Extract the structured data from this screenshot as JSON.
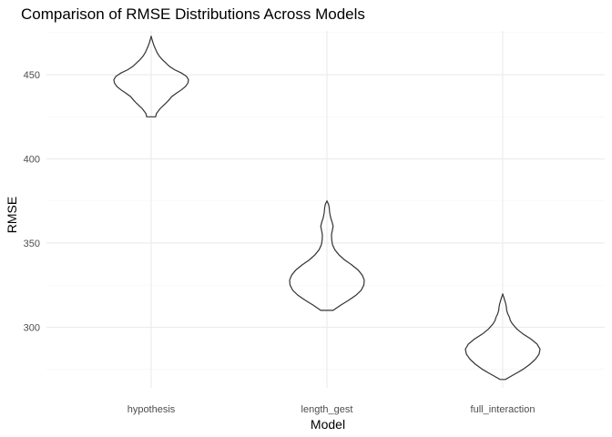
{
  "chart_data": {
    "type": "violin",
    "title": "Comparison of RMSE Distributions Across Models",
    "xlabel": "Model",
    "ylabel": "RMSE",
    "categories": [
      "hypothesis",
      "length_gest",
      "full_interaction"
    ],
    "ylim": [
      264,
      476
    ],
    "yticks": [
      300,
      350,
      400,
      450
    ],
    "ytick_labels": [
      "300",
      "350",
      "400",
      "450"
    ],
    "grid": true,
    "legend": "none",
    "outline_color": "#333333",
    "series": [
      {
        "category": "hypothesis",
        "min": 425,
        "max": 473,
        "profile": [
          [
            425,
            0.22
          ],
          [
            427,
            0.26
          ],
          [
            430,
            0.45
          ],
          [
            433,
            0.72
          ],
          [
            435,
            0.88
          ],
          [
            437,
            1.02
          ],
          [
            439,
            1.25
          ],
          [
            441,
            1.5
          ],
          [
            443,
            1.7
          ],
          [
            445,
            1.82
          ],
          [
            447,
            1.85
          ],
          [
            449,
            1.75
          ],
          [
            451,
            1.5
          ],
          [
            453,
            1.15
          ],
          [
            455,
            0.9
          ],
          [
            457,
            0.72
          ],
          [
            459,
            0.55
          ],
          [
            461,
            0.4
          ],
          [
            463,
            0.3
          ],
          [
            465,
            0.22
          ],
          [
            467,
            0.15
          ],
          [
            469,
            0.09
          ],
          [
            471,
            0.04
          ],
          [
            472,
            0.02
          ],
          [
            473,
            0.0
          ]
        ]
      },
      {
        "category": "length_gest",
        "min": 310,
        "max": 375,
        "profile": [
          [
            310,
            0.3
          ],
          [
            313,
            0.65
          ],
          [
            316,
            1.05
          ],
          [
            319,
            1.4
          ],
          [
            322,
            1.65
          ],
          [
            325,
            1.78
          ],
          [
            328,
            1.8
          ],
          [
            331,
            1.7
          ],
          [
            334,
            1.5
          ],
          [
            337,
            1.2
          ],
          [
            340,
            0.85
          ],
          [
            343,
            0.58
          ],
          [
            346,
            0.38
          ],
          [
            349,
            0.27
          ],
          [
            352,
            0.23
          ],
          [
            355,
            0.22
          ],
          [
            358,
            0.27
          ],
          [
            360,
            0.3
          ],
          [
            362,
            0.26
          ],
          [
            365,
            0.18
          ],
          [
            368,
            0.13
          ],
          [
            371,
            0.11
          ],
          [
            373,
            0.08
          ],
          [
            375,
            0.0
          ]
        ]
      },
      {
        "category": "full_interaction",
        "min": 269,
        "max": 320,
        "profile": [
          [
            269,
            0.13
          ],
          [
            271,
            0.42
          ],
          [
            273,
            0.72
          ],
          [
            275,
            1.0
          ],
          [
            278,
            1.35
          ],
          [
            281,
            1.62
          ],
          [
            284,
            1.8
          ],
          [
            287,
            1.85
          ],
          [
            290,
            1.7
          ],
          [
            293,
            1.4
          ],
          [
            296,
            1.0
          ],
          [
            299,
            0.7
          ],
          [
            302,
            0.48
          ],
          [
            304,
            0.38
          ],
          [
            306,
            0.33
          ],
          [
            308,
            0.25
          ],
          [
            310,
            0.2
          ],
          [
            312,
            0.18
          ],
          [
            314,
            0.15
          ],
          [
            316,
            0.1
          ],
          [
            318,
            0.05
          ],
          [
            319,
            0.02
          ],
          [
            320,
            0.0
          ]
        ]
      }
    ]
  }
}
